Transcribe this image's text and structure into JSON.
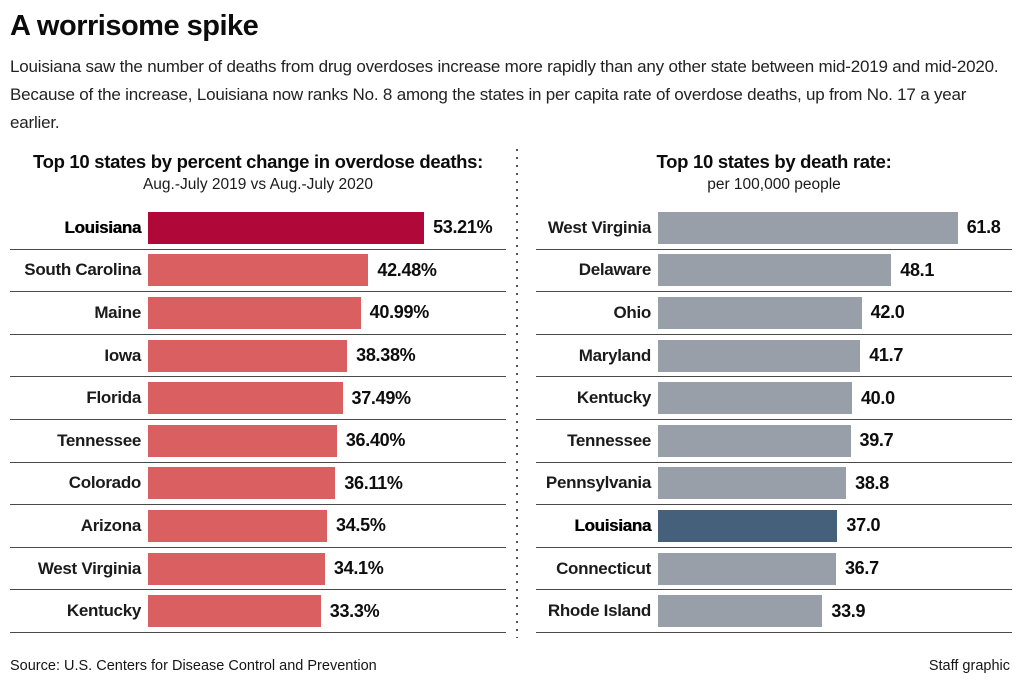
{
  "header": {
    "title": "A worrisome spike",
    "intro": "Louisiana saw the number of deaths from drug overdoses increase more rapidly than any other state between mid-2019 and mid-2020. Because of the increase, Louisiana now ranks No. 8 among the states in per capita rate of overdose deaths, up from No. 17 a year earlier."
  },
  "footer": {
    "source": "Source: U.S. Centers for Disease Control and Prevention",
    "credit": "Staff graphic"
  },
  "colors": {
    "highlight_red": "#b00838",
    "bar_red": "#d95f60",
    "bar_gray": "#999fa9",
    "highlight_slate": "#45607a",
    "separator": "#4a4a4a"
  },
  "chart_data": [
    {
      "type": "bar",
      "orientation": "horizontal",
      "title": "Top 10 states by percent change in overdose deaths:",
      "subtitle": "Aug.-July 2019 vs Aug.-July 2020",
      "categories": [
        "Louisiana",
        "South Carolina",
        "Maine",
        "Iowa",
        "Florida",
        "Tennessee",
        "Colorado",
        "Arizona",
        "West Virginia",
        "Kentucky"
      ],
      "values": [
        53.21,
        42.48,
        40.99,
        38.38,
        37.49,
        36.4,
        36.11,
        34.5,
        34.1,
        33.3
      ],
      "labels": [
        "53.21%",
        "42.48%",
        "40.99%",
        "38.38%",
        "37.49%",
        "36.40%",
        "36.11%",
        "34.5%",
        "34.1%",
        "33.3%"
      ],
      "highlight_category": "Louisiana",
      "bar_color": "#d95f60",
      "highlight_color": "#b00838",
      "xlim": [
        0,
        69
      ],
      "grid": false,
      "legend": false
    },
    {
      "type": "bar",
      "orientation": "horizontal",
      "title": "Top 10 states by death rate:",
      "subtitle": "per 100,000 people",
      "categories": [
        "West Virginia",
        "Delaware",
        "Ohio",
        "Maryland",
        "Kentucky",
        "Tennessee",
        "Pennsylvania",
        "Louisiana",
        "Connecticut",
        "Rhode Island"
      ],
      "values": [
        61.8,
        48.1,
        42.0,
        41.7,
        40.0,
        39.7,
        38.8,
        37.0,
        36.7,
        33.9
      ],
      "labels": [
        "61.8",
        "48.1",
        "42.0",
        "41.7",
        "40.0",
        "39.7",
        "38.8",
        "37.0",
        "36.7",
        "33.9"
      ],
      "highlight_category": "Louisiana",
      "bar_color": "#999fa9",
      "highlight_color": "#45607a",
      "xlim": [
        0,
        73
      ],
      "grid": false,
      "legend": false
    }
  ]
}
